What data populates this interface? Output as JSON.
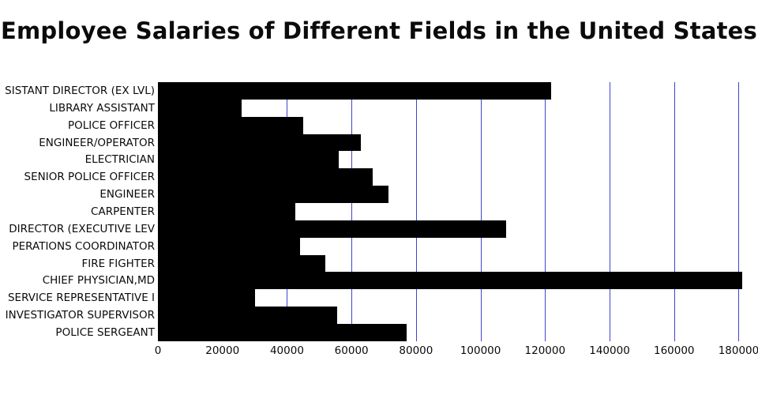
{
  "chart_data": {
    "type": "bar",
    "orientation": "horizontal",
    "title": "Employee Salaries of Different Fields in the United States",
    "categories": [
      "SISTANT DIRECTOR (EX LVL)",
      "LIBRARY ASSISTANT",
      "POLICE OFFICER",
      "ENGINEER/OPERATOR",
      "ELECTRICIAN",
      "SENIOR POLICE OFFICER",
      "ENGINEER",
      "CARPENTER",
      "DIRECTOR (EXECUTIVE LEV",
      "PERATIONS COORDINATOR",
      "FIRE FIGHTER",
      "CHIEF PHYSICIAN,MD",
      "SERVICE REPRESENTATIVE I",
      "INVESTIGATOR SUPERVISOR",
      "POLICE SERGEANT"
    ],
    "values": [
      122000,
      26000,
      45000,
      63000,
      56000,
      66500,
      71500,
      42500,
      108000,
      44000,
      52000,
      181000,
      30000,
      55500,
      77000
    ],
    "xlabel": "",
    "ylabel": "",
    "xlim": [
      0,
      186000
    ],
    "xticks": [
      0,
      20000,
      40000,
      60000,
      80000,
      100000,
      120000,
      140000,
      160000,
      180000
    ],
    "grid": "vertical",
    "legend": "none",
    "bar_color": "#000000",
    "gridline_color": "#4343cd"
  }
}
